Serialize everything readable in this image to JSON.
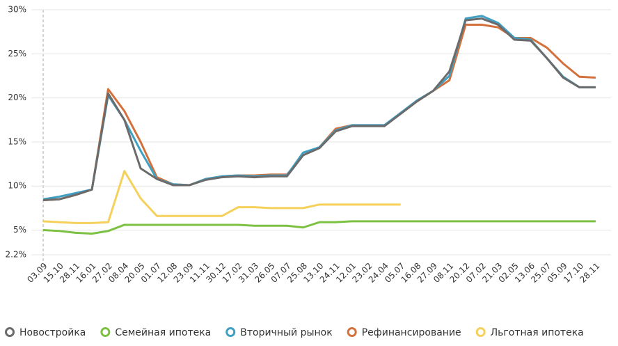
{
  "chart_data": {
    "type": "line",
    "categories": [
      "03.09",
      "15.10",
      "28.11",
      "16.01",
      "27.02",
      "08.04",
      "20.05",
      "01.07",
      "12.08",
      "23.09",
      "11.11",
      "30.12",
      "17.02",
      "31.03",
      "26.05",
      "07.07",
      "25.08",
      "13.10",
      "24.11",
      "12.01",
      "23.02",
      "24.04",
      "05.07",
      "16.08",
      "27.09",
      "08.11",
      "20.12",
      "07.02",
      "21.03",
      "02.05",
      "13.06",
      "25.07",
      "05.09",
      "17.10",
      "28.11"
    ],
    "series": [
      {
        "name": "Новостройка",
        "color": "#6b6b6b",
        "values": [
          8.4,
          8.5,
          9.0,
          9.6,
          20.5,
          17.5,
          12.0,
          10.8,
          10.1,
          10.1,
          10.7,
          11.0,
          11.1,
          11.0,
          11.1,
          11.1,
          13.5,
          14.3,
          16.2,
          16.8,
          16.8,
          16.8,
          18.2,
          19.6,
          20.8,
          23.0,
          28.8,
          29.0,
          28.3,
          26.6,
          26.5,
          24.5,
          22.3,
          21.2,
          21.2
        ]
      },
      {
        "name": "Семейная ипотека",
        "color": "#7cc142",
        "values": [
          5.0,
          4.9,
          4.7,
          4.6,
          4.9,
          5.6,
          5.6,
          5.6,
          5.6,
          5.6,
          5.6,
          5.6,
          5.6,
          5.5,
          5.5,
          5.5,
          5.3,
          5.9,
          5.9,
          6.0,
          6.0,
          6.0,
          6.0,
          6.0,
          6.0,
          6.0,
          6.0,
          6.0,
          6.0,
          6.0,
          6.0,
          6.0,
          6.0,
          6.0,
          6.0
        ]
      },
      {
        "name": "Вторичный рынок",
        "color": "#3fa0c4",
        "values": [
          8.5,
          8.8,
          9.2,
          9.6,
          20.3,
          17.5,
          14.0,
          10.8,
          10.2,
          10.1,
          10.8,
          11.1,
          11.2,
          11.1,
          11.2,
          11.2,
          13.8,
          14.4,
          16.3,
          16.9,
          16.9,
          16.9,
          18.3,
          19.7,
          20.8,
          22.5,
          29.0,
          29.3,
          28.5,
          26.8,
          26.6,
          24.5,
          22.4,
          21.2,
          21.2
        ]
      },
      {
        "name": "Рефинансирование",
        "color": "#d4703c",
        "values": [
          8.4,
          8.5,
          9.0,
          9.6,
          21.0,
          18.5,
          15.0,
          11.0,
          10.2,
          10.1,
          10.8,
          11.1,
          11.2,
          11.2,
          11.3,
          11.3,
          13.5,
          14.4,
          16.5,
          16.9,
          16.9,
          16.9,
          18.2,
          19.6,
          20.8,
          22.0,
          28.3,
          28.3,
          28.0,
          26.8,
          26.8,
          25.7,
          23.9,
          22.4,
          22.3
        ]
      },
      {
        "name": "Льготная ипотека",
        "color": "#f5d05a",
        "values": [
          6.0,
          5.9,
          5.8,
          5.8,
          5.9,
          11.7,
          8.6,
          6.6,
          6.6,
          6.6,
          6.6,
          6.6,
          7.6,
          7.6,
          7.5,
          7.5,
          7.5,
          7.9,
          7.9,
          7.9,
          7.9,
          7.9,
          7.9,
          null,
          null,
          null,
          null,
          null,
          null,
          null,
          null,
          null,
          null,
          null,
          null
        ]
      }
    ],
    "ylim": [
      2.2,
      30
    ],
    "yticks": [
      {
        "value": 2.2,
        "label": "2.2%"
      },
      {
        "value": 5,
        "label": "5%"
      },
      {
        "value": 10,
        "label": "10%"
      },
      {
        "value": 15,
        "label": "15%"
      },
      {
        "value": 20,
        "label": "20%"
      },
      {
        "value": 25,
        "label": "25%"
      },
      {
        "value": 30,
        "label": "30%"
      }
    ],
    "grid": true
  }
}
